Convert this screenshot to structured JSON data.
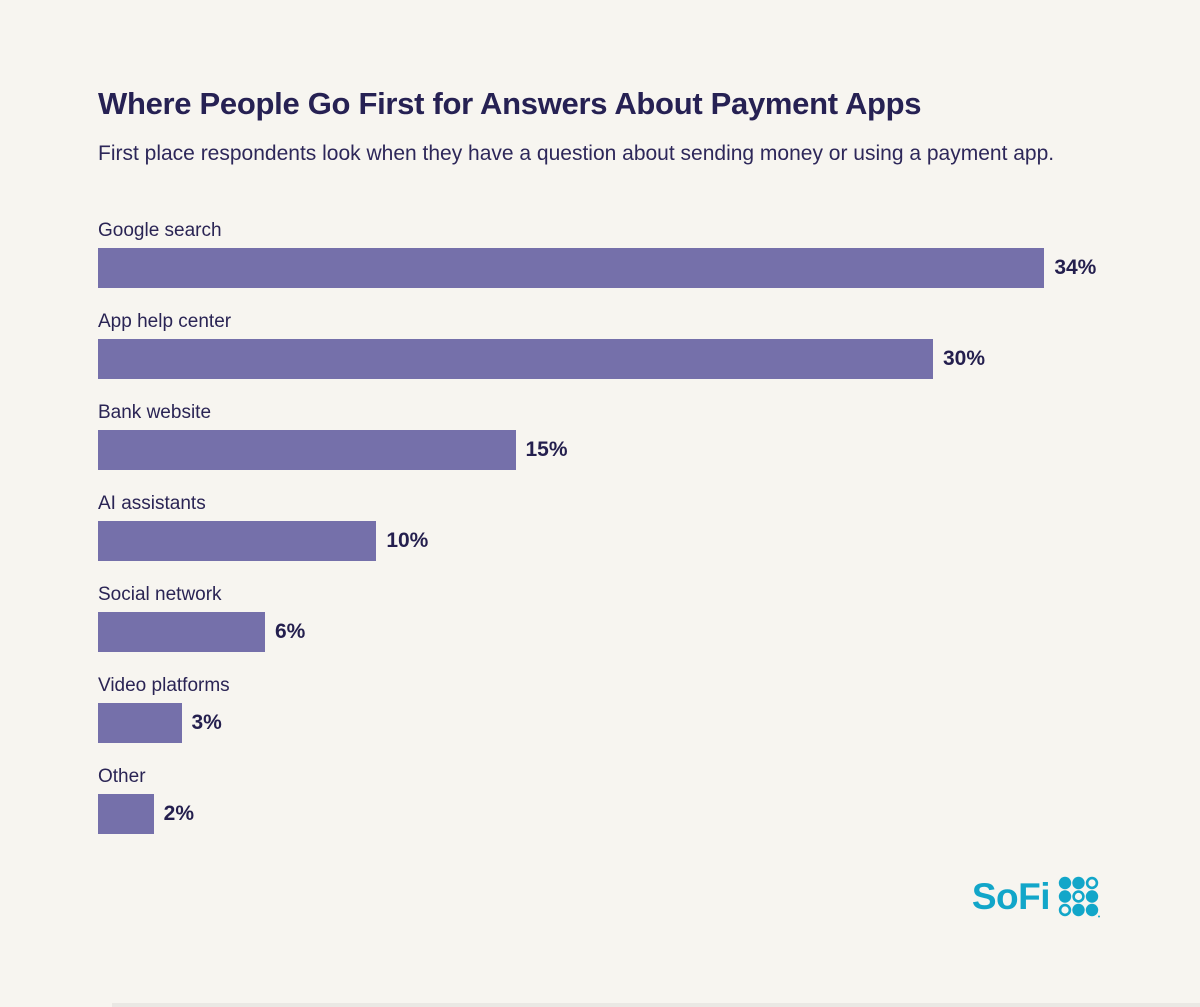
{
  "page": {
    "background_color": "#f7f5f0"
  },
  "header": {
    "title": "Where People Go First for Answers About Payment Apps",
    "subtitle": "First place respondents look when they have a question about sending money or using a payment app."
  },
  "chart_data": {
    "type": "bar",
    "orientation": "horizontal",
    "title": "Where People Go First for Answers About Payment Apps",
    "subtitle": "First place respondents look when they have a question about sending money or using a payment app.",
    "categories": [
      "Google search",
      "App help center",
      "Bank website",
      "AI assistants",
      "Social network",
      "Video platforms",
      "Other"
    ],
    "values": [
      34,
      30,
      15,
      10,
      6,
      3,
      2
    ],
    "value_labels": [
      "34%",
      "30%",
      "15%",
      "10%",
      "6%",
      "3%",
      "2%"
    ],
    "xlabel": "",
    "ylabel": "",
    "xlim": [
      0,
      36
    ],
    "grid": false,
    "legend": "none",
    "bar_color": "#7570aa",
    "category_label_color": "#2a2454",
    "value_label_color": "#241f4e"
  },
  "branding": {
    "logo_text": "SoFi",
    "logo_color": "#12a6c9",
    "dot_pattern": [
      [
        "filled",
        "filled",
        "outline"
      ],
      [
        "filled",
        "outline",
        "filled"
      ],
      [
        "outline",
        "filled",
        "filled"
      ]
    ]
  }
}
